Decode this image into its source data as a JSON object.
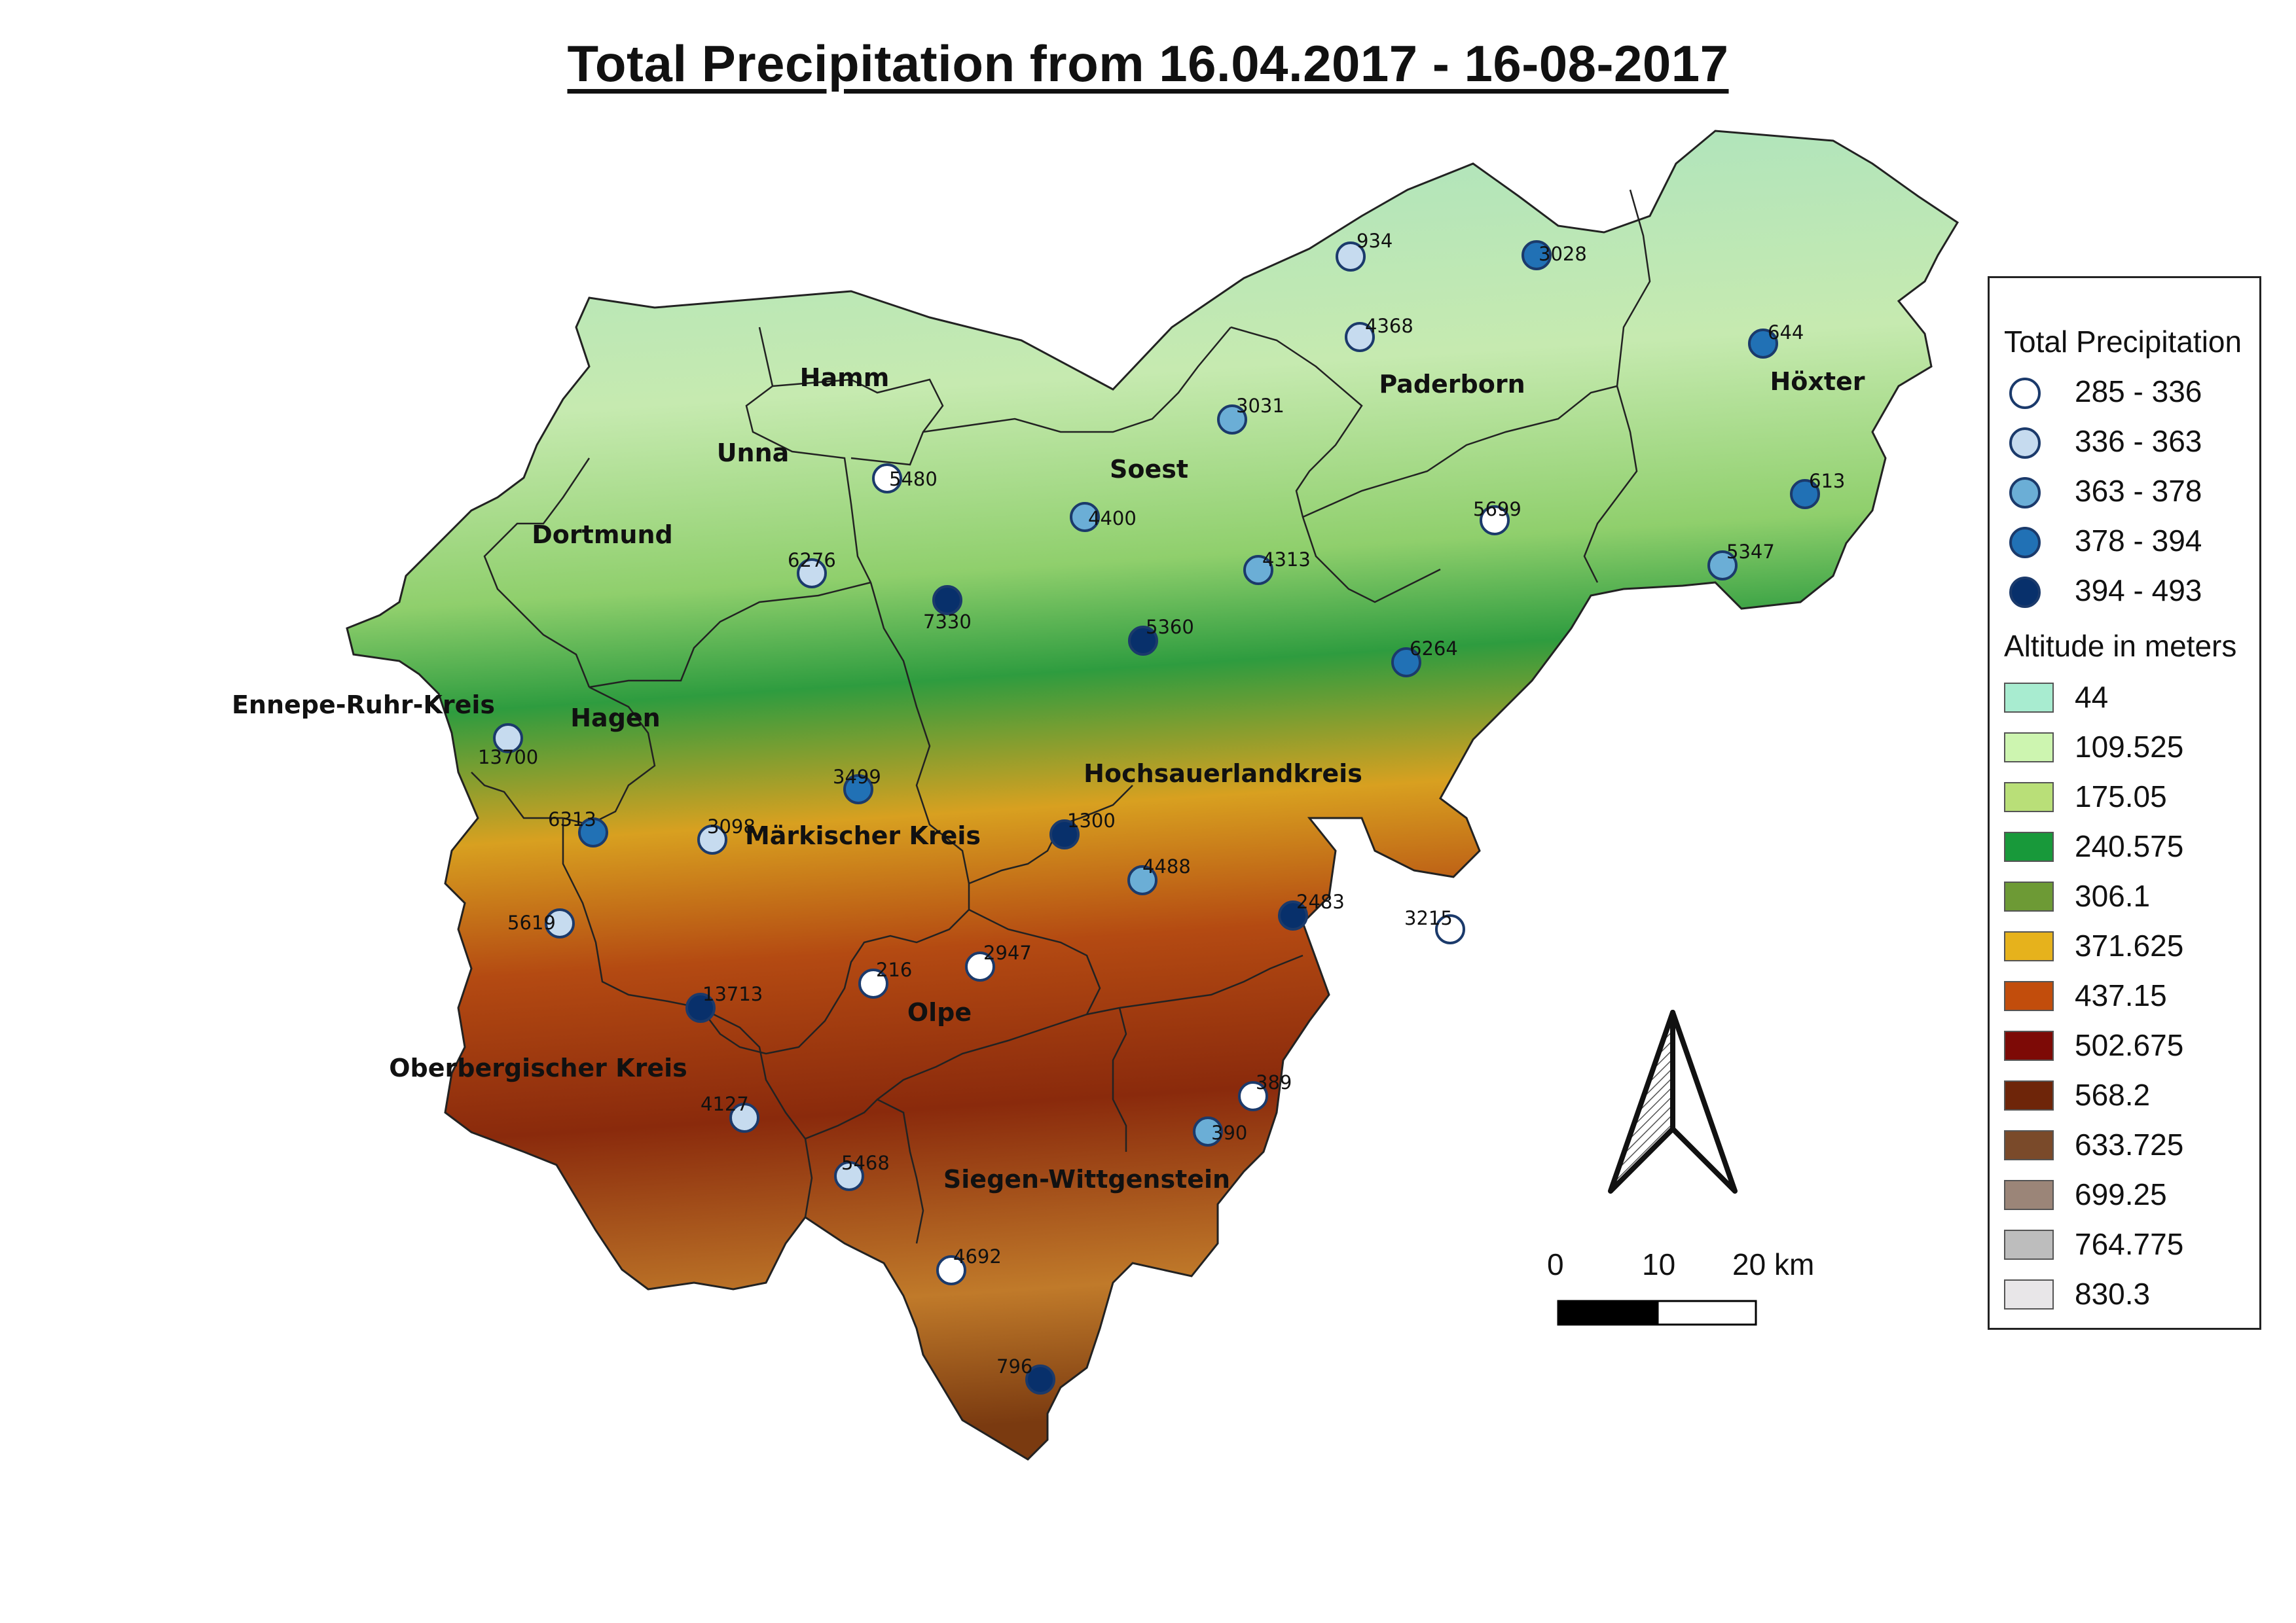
{
  "title": "Total  Precipitation from 16.04.2017 - 16-08-2017",
  "districts": [
    {
      "id": "hamm",
      "name": "Hamm"
    },
    {
      "id": "unna",
      "name": "Unna"
    },
    {
      "id": "soest",
      "name": "Soest"
    },
    {
      "id": "paderborn",
      "name": "Paderborn"
    },
    {
      "id": "hoexter",
      "name": "Höxter"
    },
    {
      "id": "dortmund",
      "name": "Dortmund"
    },
    {
      "id": "ennepe-ruhr-kreis",
      "name": "Ennepe-Ruhr-Kreis"
    },
    {
      "id": "hagen",
      "name": "Hagen"
    },
    {
      "id": "hochsauerlandkreis",
      "name": "Hochsauerlandkreis"
    },
    {
      "id": "maerkischer-kreis",
      "name": "Märkischer Kreis"
    },
    {
      "id": "olpe",
      "name": "Olpe"
    },
    {
      "id": "oberbergischer-kreis",
      "name": "Oberbergischer Kreis"
    },
    {
      "id": "siegen-wittgenstein",
      "name": "Siegen-Wittgenstein"
    }
  ],
  "stations": [
    {
      "id": "934",
      "class": 1
    },
    {
      "id": "3028",
      "class": 3
    },
    {
      "id": "4368",
      "class": 1
    },
    {
      "id": "644",
      "class": 3
    },
    {
      "id": "3031",
      "class": 2
    },
    {
      "id": "5480",
      "class": 0
    },
    {
      "id": "4400",
      "class": 2
    },
    {
      "id": "613",
      "class": 3
    },
    {
      "id": "5699",
      "class": 0
    },
    {
      "id": "5347",
      "class": 2
    },
    {
      "id": "6276",
      "class": 1
    },
    {
      "id": "4313",
      "class": 2
    },
    {
      "id": "7330",
      "class": 4
    },
    {
      "id": "5360",
      "class": 4
    },
    {
      "id": "6264",
      "class": 3
    },
    {
      "id": "13700",
      "class": 1
    },
    {
      "id": "3499",
      "class": 3
    },
    {
      "id": "6313",
      "class": 3
    },
    {
      "id": "3098",
      "class": 1
    },
    {
      "id": "1300",
      "class": 4
    },
    {
      "id": "4488",
      "class": 2
    },
    {
      "id": "2483",
      "class": 4
    },
    {
      "id": "3215",
      "class": 0
    },
    {
      "id": "5619",
      "class": 1
    },
    {
      "id": "216",
      "class": 0
    },
    {
      "id": "2947",
      "class": 0
    },
    {
      "id": "13713",
      "class": 4
    },
    {
      "id": "389",
      "class": 0
    },
    {
      "id": "390",
      "class": 2
    },
    {
      "id": "4127",
      "class": 1
    },
    {
      "id": "5468",
      "class": 1
    },
    {
      "id": "4692",
      "class": 0
    },
    {
      "id": "796",
      "class": 4
    }
  ],
  "legend": {
    "precip_title": "Total Precipitation",
    "precip_classes": [
      {
        "label": "285 - 336",
        "color": "#ffffff"
      },
      {
        "label": "336 - 363",
        "color": "#c6dbef"
      },
      {
        "label": "363 - 378",
        "color": "#6baed6"
      },
      {
        "label": "378 - 394",
        "color": "#2171b5"
      },
      {
        "label": "394 - 493",
        "color": "#08306b"
      }
    ],
    "altitude_title": "Altitude in meters",
    "altitude_classes": [
      {
        "label": "44",
        "color": "#a8ecd0"
      },
      {
        "label": "109.525",
        "color": "#cdf5b0"
      },
      {
        "label": "175.05",
        "color": "#b9df78"
      },
      {
        "label": "240.575",
        "color": "#18993a"
      },
      {
        "label": "306.1",
        "color": "#6d9a35"
      },
      {
        "label": "371.625",
        "color": "#e6b21c"
      },
      {
        "label": "437.15",
        "color": "#c24d0c"
      },
      {
        "label": "502.675",
        "color": "#7d0a06"
      },
      {
        "label": "568.2",
        "color": "#6e2509"
      },
      {
        "label": "633.725",
        "color": "#7a4a2a"
      },
      {
        "label": "699.25",
        "color": "#9b8578"
      },
      {
        "label": "764.775",
        "color": "#bdbdbd"
      },
      {
        "label": "830.3",
        "color": "#e8e6e8"
      }
    ]
  },
  "scale_bar": {
    "ticks": [
      "0",
      "10",
      "20 km"
    ]
  },
  "north_arrow": {
    "icon": "north-arrow-icon"
  }
}
